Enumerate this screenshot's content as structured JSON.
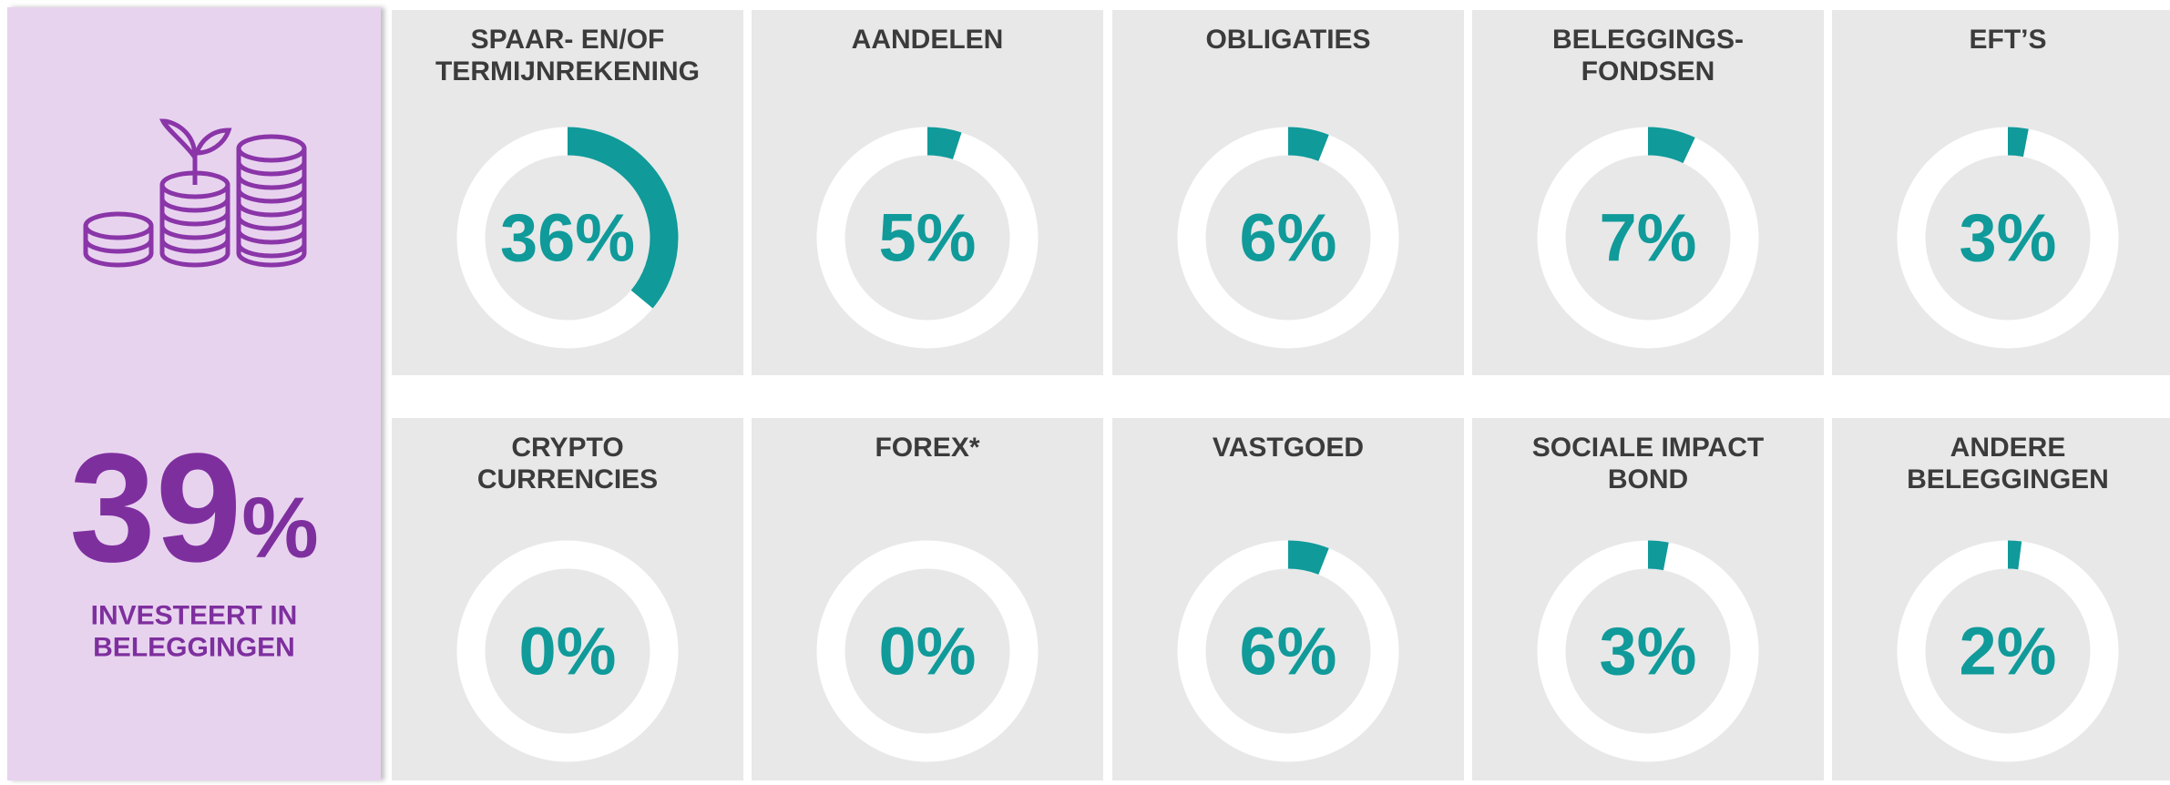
{
  "summary": {
    "value": 39,
    "unit": "%",
    "label": [
      "INVESTEERT IN",
      "BELEGGINGEN"
    ],
    "color": "#7e2f9e"
  },
  "chart_data": [
    {
      "type": "donut",
      "title": [
        "SPAAR- EN/OF",
        "TERMIJNREKENING"
      ],
      "values": [
        36
      ],
      "value_labels": [
        "36%"
      ],
      "ylim": [
        0,
        100
      ],
      "color": "#109a9a"
    },
    {
      "type": "donut",
      "title": [
        "AANDELEN"
      ],
      "values": [
        5
      ],
      "value_labels": [
        "5%"
      ],
      "ylim": [
        0,
        100
      ],
      "color": "#109a9a"
    },
    {
      "type": "donut",
      "title": [
        "OBLIGATIES"
      ],
      "values": [
        6
      ],
      "value_labels": [
        "6%"
      ],
      "ylim": [
        0,
        100
      ],
      "color": "#109a9a"
    },
    {
      "type": "donut",
      "title": [
        "BELEGGINGS-",
        "FONDSEN"
      ],
      "values": [
        7
      ],
      "value_labels": [
        "7%"
      ],
      "ylim": [
        0,
        100
      ],
      "color": "#109a9a"
    },
    {
      "type": "donut",
      "title": [
        "EFT’S"
      ],
      "values": [
        3
      ],
      "value_labels": [
        "3%"
      ],
      "ylim": [
        0,
        100
      ],
      "color": "#109a9a"
    },
    {
      "type": "donut",
      "title": [
        "CRYPTO",
        "CURRENCIES"
      ],
      "values": [
        0
      ],
      "value_labels": [
        "0%"
      ],
      "ylim": [
        0,
        100
      ],
      "color": "#109a9a"
    },
    {
      "type": "donut",
      "title": [
        "FOREX*"
      ],
      "values": [
        0
      ],
      "value_labels": [
        "0%"
      ],
      "ylim": [
        0,
        100
      ],
      "color": "#109a9a"
    },
    {
      "type": "donut",
      "title": [
        "VASTGOED"
      ],
      "values": [
        6
      ],
      "value_labels": [
        "6%"
      ],
      "ylim": [
        0,
        100
      ],
      "color": "#109a9a"
    },
    {
      "type": "donut",
      "title": [
        "SOCIALE IMPACT",
        "BOND"
      ],
      "values": [
        3
      ],
      "value_labels": [
        "3%"
      ],
      "ylim": [
        0,
        100
      ],
      "color": "#109a9a"
    },
    {
      "type": "donut",
      "title": [
        "ANDERE",
        "BELEGGINGEN"
      ],
      "values": [
        2
      ],
      "value_labels": [
        "2%"
      ],
      "ylim": [
        0,
        100
      ],
      "color": "#109a9a"
    }
  ]
}
